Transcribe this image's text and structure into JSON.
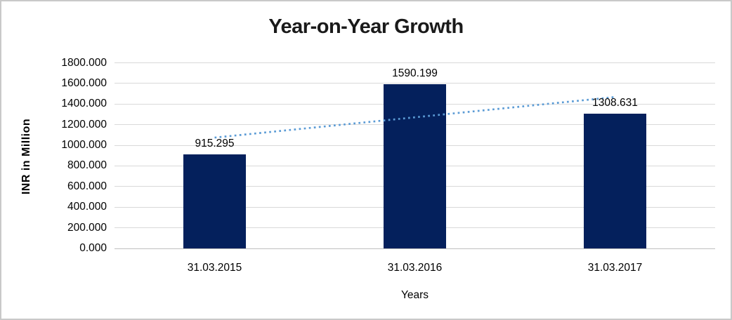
{
  "chart_data": {
    "type": "bar",
    "title": "Year-on-Year Growth",
    "xlabel": "Years",
    "ylabel": "INR in Million",
    "categories": [
      "31.03.2015",
      "31.03.2016",
      "31.03.2017"
    ],
    "values": [
      915.295,
      1590.199,
      1308.631
    ],
    "data_labels": [
      "915.295",
      "1590.199",
      "1308.631"
    ],
    "ylim": [
      0,
      1800
    ],
    "ytick_step": 200,
    "ytick_decimals": 3,
    "grid": true,
    "legend": "none",
    "trendline": {
      "type": "linear",
      "style": "dotted",
      "spans_categories": [
        1,
        3
      ]
    },
    "colors": {
      "bar": "#04205c",
      "trendline": "#5b9bd5",
      "gridline": "#d9d9d9",
      "axis_line": "#bfbfbf",
      "title_text": "#1a1a1a",
      "label_text": "#000000"
    }
  }
}
